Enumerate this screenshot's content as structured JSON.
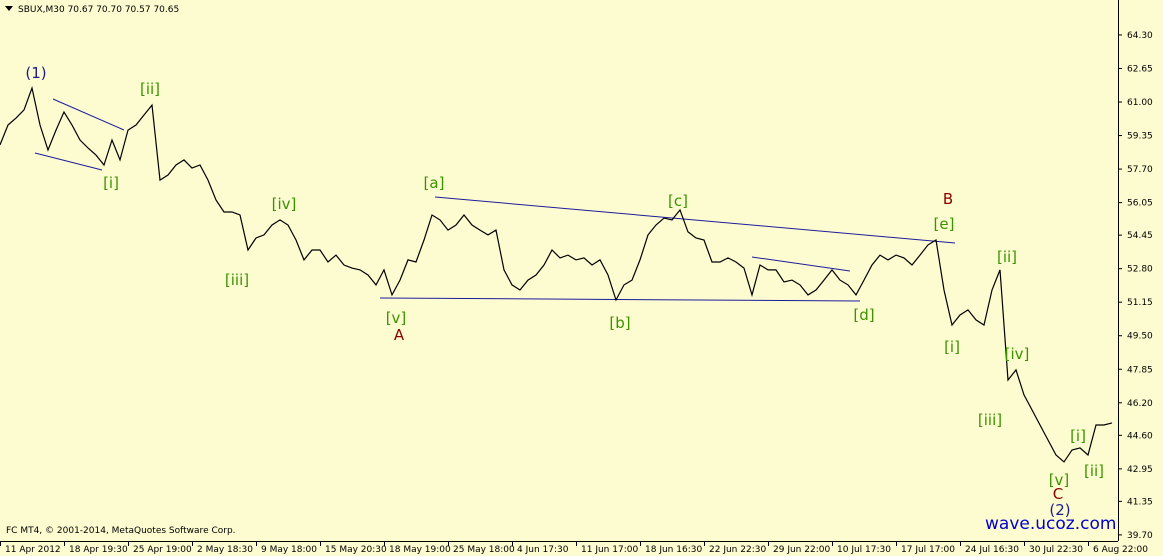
{
  "chart_data": {
    "type": "line",
    "header": "SBUX,M30  70.67 70.70 70.57 70.65",
    "footer": "FC MT4, © 2001-2014, MetaQuotes Software Corp.",
    "watermark": "wave.ucoz.com",
    "series": [
      {
        "name": "SBUX,M30",
        "color": "#000000",
        "values": [
          58.89,
          59.87,
          60.21,
          60.61,
          61.69,
          59.87,
          58.64,
          59.62,
          60.51,
          59.87,
          59.13,
          58.74,
          58.39,
          57.9,
          59.13,
          58.15,
          59.62,
          59.87,
          60.36,
          60.85,
          57.16,
          57.41,
          57.9,
          58.15,
          57.75,
          57.9,
          57.16,
          56.18,
          55.59,
          55.59,
          55.44,
          53.72,
          54.31,
          54.46,
          54.95,
          55.2,
          54.95,
          54.21,
          53.23,
          53.72,
          53.72,
          53.13,
          53.47,
          52.98,
          52.83,
          52.74,
          52.49,
          52.0,
          52.74,
          51.51,
          52.24,
          53.23,
          53.13,
          54.21,
          55.44,
          55.2,
          54.7,
          54.95,
          55.44,
          54.95,
          54.7,
          54.46,
          54.7,
          52.74,
          52.0,
          51.75,
          52.24,
          52.49,
          52.98,
          53.72,
          53.33,
          53.47,
          53.23,
          53.33,
          52.98,
          53.23,
          52.49,
          51.26,
          52.0,
          52.24,
          53.23,
          54.46,
          54.95,
          55.29,
          55.2,
          55.69,
          54.61,
          54.31,
          54.21,
          53.13,
          53.13,
          53.33,
          53.13,
          52.83,
          51.51,
          52.98,
          52.74,
          52.74,
          52.15,
          52.24,
          52.0,
          51.51,
          51.75,
          52.24,
          52.74,
          52.24,
          52.0,
          51.51,
          52.24,
          52.98,
          53.47,
          53.23,
          53.47,
          53.33,
          52.98,
          53.47,
          53.97,
          54.21,
          51.75,
          50.03,
          50.52,
          50.77,
          50.28,
          50.03,
          51.75,
          52.74,
          47.32,
          47.82,
          46.59,
          45.85,
          45.11,
          44.37,
          43.63,
          43.29,
          43.88,
          43.98,
          43.63,
          45.11,
          45.11,
          45.21
        ]
      }
    ],
    "xlim": [
      0,
      139.75
    ],
    "xticks": [
      {
        "value": 0,
        "label": "11 Apr 2012"
      },
      {
        "value": 8,
        "label": "18 Apr 19:30"
      },
      {
        "value": 16,
        "label": "25 Apr 19:00"
      },
      {
        "value": 24,
        "label": "2 May 18:30"
      },
      {
        "value": 32,
        "label": "9 May 18:00"
      },
      {
        "value": 40,
        "label": "15 May 20:30"
      },
      {
        "value": 48,
        "label": "18 May 19:00"
      },
      {
        "value": 56,
        "label": "25 May 18:00"
      },
      {
        "value": 64,
        "label": "4 Jun 17:30"
      },
      {
        "value": 72,
        "label": "11 Jun 17:00"
      },
      {
        "value": 80,
        "label": "18 Jun 16:30"
      },
      {
        "value": 88,
        "label": "22 Jun 22:30"
      },
      {
        "value": 96,
        "label": "29 Jun 22:00"
      },
      {
        "value": 104,
        "label": "10 Jul 17:30"
      },
      {
        "value": 112,
        "label": "17 Jul 17:00"
      },
      {
        "value": 120,
        "label": "24 Jul 16:30"
      },
      {
        "value": 128,
        "label": "30 Jul 22:30"
      },
      {
        "value": 136,
        "label": "6 Aug 22:00"
      }
    ],
    "ylim": [
      39.4,
      66.02
    ],
    "yticks": [
      {
        "value": 64.3,
        "label": "64.30"
      },
      {
        "value": 62.65,
        "label": "62.65"
      },
      {
        "value": 61.0,
        "label": "61.00"
      },
      {
        "value": 59.35,
        "label": "59.35"
      },
      {
        "value": 57.7,
        "label": "57.70"
      },
      {
        "value": 56.05,
        "label": "56.05"
      },
      {
        "value": 54.45,
        "label": "54.45"
      },
      {
        "value": 52.8,
        "label": "52.80"
      },
      {
        "value": 51.15,
        "label": "51.15"
      },
      {
        "value": 49.5,
        "label": "49.50"
      },
      {
        "value": 47.85,
        "label": "47.85"
      },
      {
        "value": 46.2,
        "label": "46.20"
      },
      {
        "value": 44.6,
        "label": "44.60"
      },
      {
        "value": 42.95,
        "label": "42.95"
      },
      {
        "value": 41.35,
        "label": "41.35"
      },
      {
        "value": 39.7,
        "label": "39.70"
      }
    ],
    "annotations": [
      {
        "text": "(1)",
        "color": "#1c1c8c"
      },
      {
        "text": "[ii]",
        "color": "#3a9400"
      },
      {
        "text": "[i]",
        "color": "#3a9400"
      },
      {
        "text": "[iv]",
        "color": "#3a9400"
      },
      {
        "text": "[iii]",
        "color": "#3a9400"
      },
      {
        "text": "[v]",
        "color": "#3a9400"
      },
      {
        "text": "A",
        "color": "#8b0000"
      },
      {
        "text": "[a]",
        "color": "#3a9400"
      },
      {
        "text": "[b]",
        "color": "#3a9400"
      },
      {
        "text": "[c]",
        "color": "#3a9400"
      },
      {
        "text": "[d]",
        "color": "#3a9400"
      },
      {
        "text": "B",
        "color": "#8b0000"
      },
      {
        "text": "[e]",
        "color": "#3a9400"
      },
      {
        "text": "[ii]",
        "color": "#3a9400"
      },
      {
        "text": "[i]",
        "color": "#3a9400"
      },
      {
        "text": "[iv]",
        "color": "#3a9400"
      },
      {
        "text": "[iii]",
        "color": "#3a9400"
      },
      {
        "text": "[v]",
        "color": "#3a9400"
      },
      {
        "text": "[i]",
        "color": "#3a9400"
      },
      {
        "text": "[ii]",
        "color": "#3a9400"
      },
      {
        "text": "C",
        "color": "#8b0000"
      },
      {
        "text": "(2)",
        "color": "#1c1c8c"
      }
    ]
  }
}
